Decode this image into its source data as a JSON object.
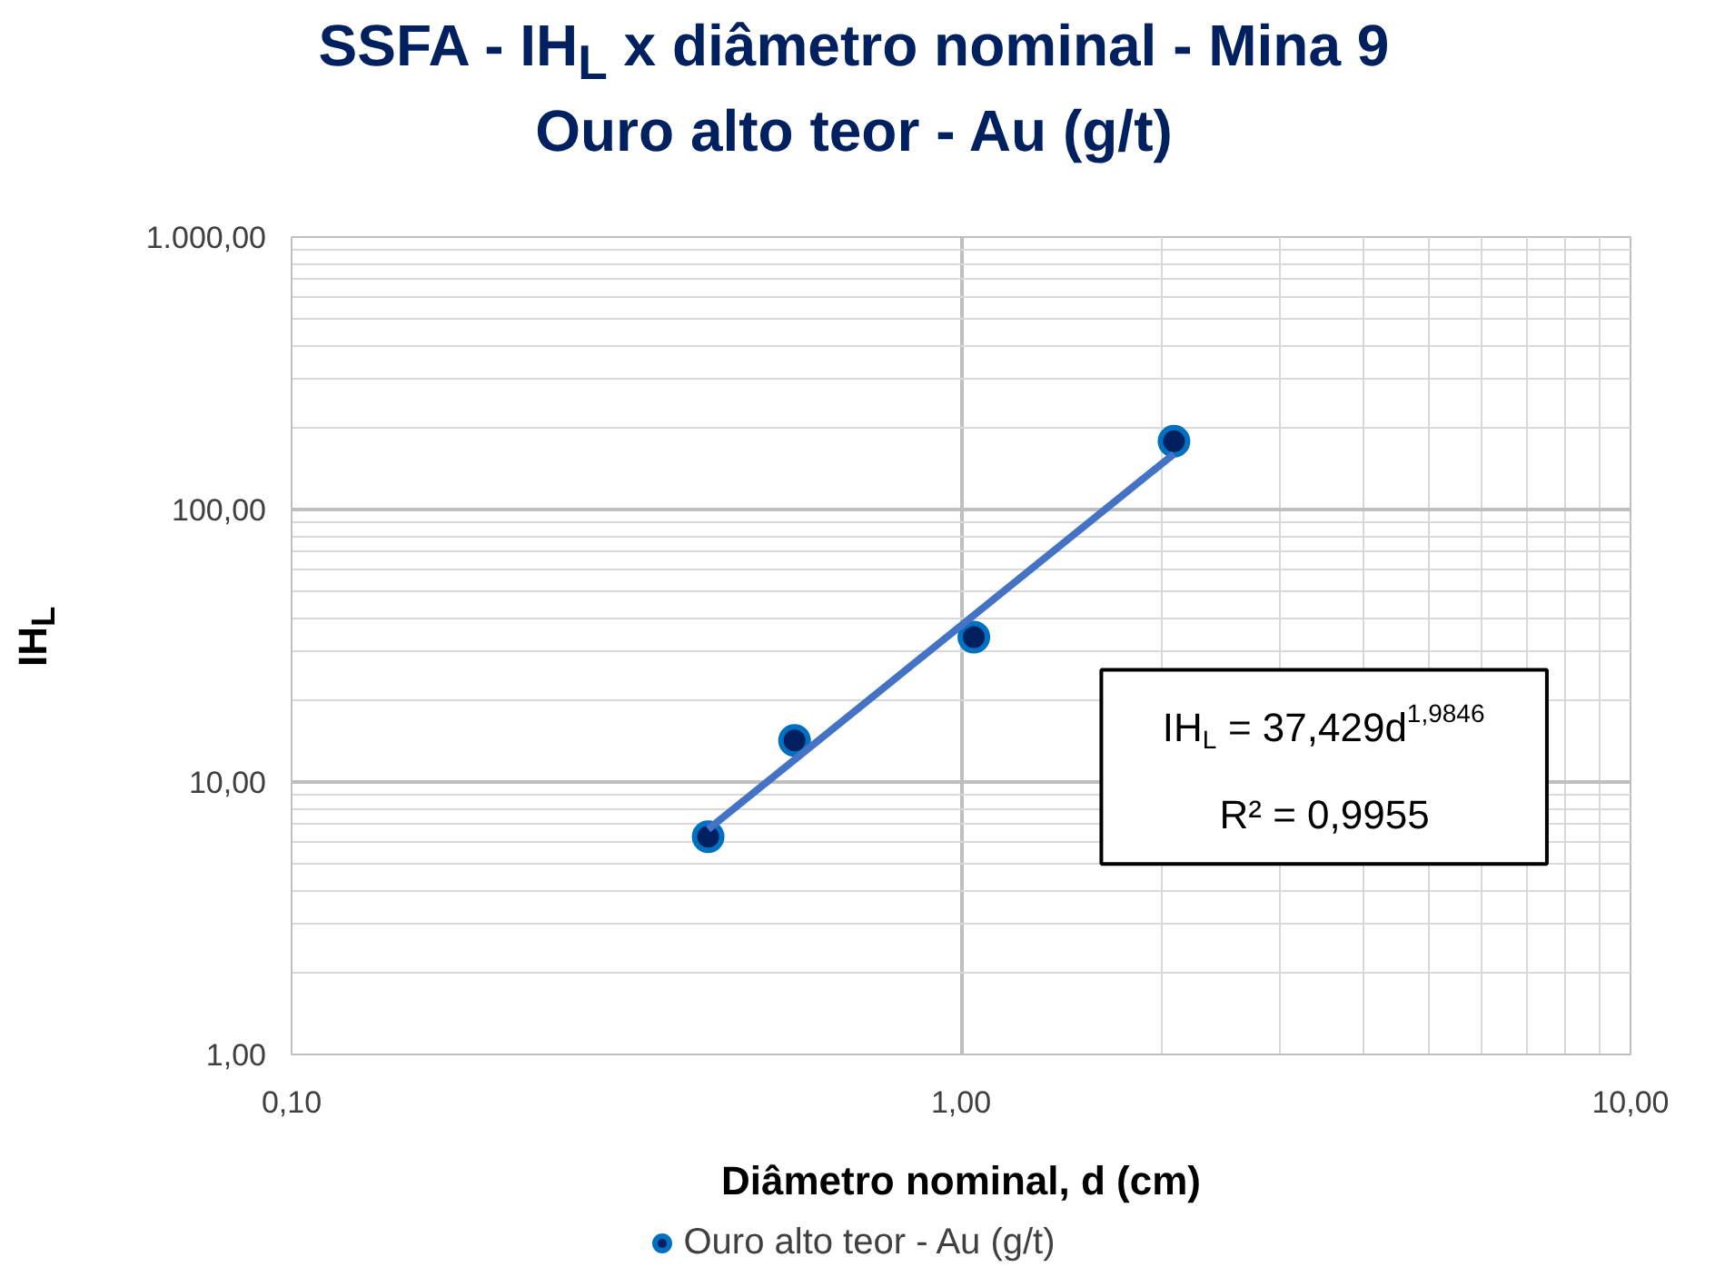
{
  "chart_data": {
    "type": "scatter",
    "title": "SSFA - IH$_{L}$ x diâmetro nominal - Mina 9",
    "subtitle": "Ouro alto teor - Au (g/t)",
    "xlabel": "Diâmetro nominal, d (cm)",
    "ylabel": "IH$_{L}$",
    "log": "xy",
    "xlim": [
      0.1,
      10
    ],
    "ylim": [
      1,
      1000
    ],
    "xticks": [
      {
        "value": 0.1,
        "label": "0,10"
      },
      {
        "value": 1,
        "label": "1,00"
      },
      {
        "value": 10,
        "label": "10,00"
      }
    ],
    "yticks": [
      {
        "value": 1,
        "label": "1,00"
      },
      {
        "value": 10,
        "label": "10,00"
      },
      {
        "value": 100,
        "label": "100,00"
      },
      {
        "value": 1000,
        "label": "1.000,00"
      }
    ],
    "grid": true,
    "legend": "bottom",
    "x": [
      0.419,
      0.564,
      1.045,
      2.08
    ],
    "series": [
      {
        "name": "Ouro alto teor - Au (g/t)",
        "color": "#002060",
        "marker": "circle",
        "values": [
          6.3,
          14.2,
          34,
          178
        ]
      },
      {
        "type": "line",
        "color": "#4472c4",
        "x": [
          0.419,
          2.08
        ],
        "values": [
          6.7,
          160
        ]
      }
    ],
    "annotations": [
      "IH$_{L}$ = 37,429d$^{1,9846}$",
      "R² = 0,9955"
    ]
  }
}
